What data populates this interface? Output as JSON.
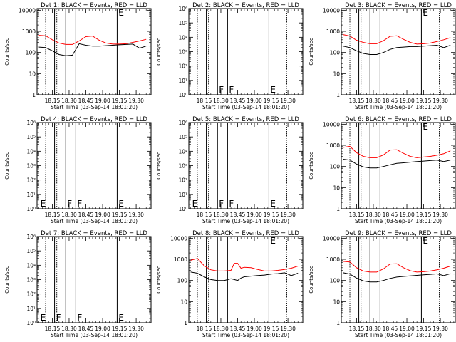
{
  "chart_data": [
    {
      "type": "line",
      "title": "Det 1: BLACK = Events, RED = LLD",
      "xlabel": "Start Time (03-Sep-14 18:01:20)",
      "ylabel": "Counts/sec",
      "xticks": [
        "18:15",
        "18:30",
        "18:45",
        "19:00",
        "19:15",
        "19:30"
      ],
      "yscale": "log",
      "ylim": [
        1,
        12000
      ],
      "yticks": [
        "1",
        "10",
        "100",
        "1000",
        "10000"
      ],
      "vlines_solid": [
        "18:17",
        "18:27",
        "18:36",
        "19:13"
      ],
      "vlines_dotted": [
        "18:09",
        "18:19",
        "19:29"
      ],
      "markers": [
        {
          "text": "E",
          "x": "19:13"
        }
      ],
      "series": [
        {
          "color": "#ff0000",
          "x": [
            "18:03",
            "18:09",
            "18:15",
            "18:21",
            "18:27",
            "18:33",
            "18:39",
            "18:45",
            "18:51",
            "18:57",
            "19:03",
            "19:09",
            "19:15",
            "19:21",
            "19:27",
            "19:33",
            "19:39"
          ],
          "values": [
            650,
            620,
            400,
            280,
            240,
            240,
            350,
            560,
            600,
            380,
            280,
            250,
            250,
            260,
            300,
            350,
            420
          ]
        },
        {
          "color": "#000000",
          "x": [
            "18:03",
            "18:09",
            "18:15",
            "18:21",
            "18:27",
            "18:33",
            "18:39",
            "18:45",
            "18:51",
            "18:57",
            "19:03",
            "19:09",
            "19:15",
            "19:21",
            "19:27",
            "19:33",
            "19:39"
          ],
          "values": [
            180,
            170,
            120,
            80,
            70,
            75,
            260,
            220,
            200,
            200,
            210,
            220,
            230,
            240,
            250,
            160,
            200
          ]
        }
      ]
    },
    {
      "type": "line",
      "title": "Det 2: BLACK = Events, RED = LLD",
      "xlabel": "Start Time (03-Sep-14 18:01:20)",
      "ylabel": "Counts/sec",
      "xticks": [
        "18:15",
        "18:30",
        "18:45",
        "19:00",
        "19:15",
        "19:30"
      ],
      "yscale": "log",
      "ylim": [
        1,
        1000000
      ],
      "yticks": [
        "10⁰",
        "10¹",
        "10²",
        "10³",
        "10⁴",
        "10⁵",
        "10⁶"
      ],
      "vlines_solid": [
        "18:17",
        "18:27",
        "18:36",
        "19:13"
      ],
      "vlines_dotted": [
        "18:09",
        "18:19",
        "19:29"
      ],
      "markers": [
        {
          "text": "F",
          "x": "18:27"
        },
        {
          "text": "F",
          "x": "18:36"
        },
        {
          "text": "E",
          "x": "19:13"
        }
      ],
      "series": []
    },
    {
      "type": "line",
      "title": "Det 3: BLACK = Events, RED = LLD",
      "xlabel": "Start Time (03-Sep-14 18:01:20)",
      "ylabel": "Counts/sec",
      "xticks": [
        "18:15",
        "18:30",
        "18:45",
        "19:00",
        "19:15",
        "19:30"
      ],
      "yscale": "log",
      "ylim": [
        1,
        12000
      ],
      "yticks": [
        "1",
        "10",
        "100",
        "1000",
        "10000"
      ],
      "vlines_solid": [
        "18:17",
        "18:27",
        "18:36",
        "19:13"
      ],
      "vlines_dotted": [
        "18:09",
        "18:19",
        "19:29"
      ],
      "markers": [
        {
          "text": "E",
          "x": "19:13"
        }
      ],
      "series": [
        {
          "color": "#ff0000",
          "x": [
            "18:03",
            "18:09",
            "18:15",
            "18:21",
            "18:27",
            "18:33",
            "18:39",
            "18:45",
            "18:51",
            "18:57",
            "19:03",
            "19:09",
            "19:15",
            "19:21",
            "19:27",
            "19:33",
            "19:39"
          ],
          "values": [
            700,
            600,
            380,
            300,
            260,
            260,
            360,
            580,
            620,
            420,
            300,
            250,
            260,
            280,
            330,
            400,
            500
          ]
        },
        {
          "color": "#000000",
          "x": [
            "18:03",
            "18:09",
            "18:15",
            "18:21",
            "18:27",
            "18:33",
            "18:39",
            "18:45",
            "18:51",
            "18:57",
            "19:03",
            "19:09",
            "19:15",
            "19:21",
            "19:27",
            "19:33",
            "19:39"
          ],
          "values": [
            200,
            170,
            120,
            90,
            80,
            80,
            100,
            140,
            170,
            180,
            190,
            190,
            200,
            210,
            220,
            170,
            220
          ]
        }
      ]
    },
    {
      "type": "line",
      "title": "Det 4: BLACK = Events, RED = LLD",
      "xlabel": "Start Time (03-Sep-14 18:01:20)",
      "ylabel": "Counts/sec",
      "xticks": [
        "18:15",
        "18:30",
        "18:45",
        "19:00",
        "19:15",
        "19:30"
      ],
      "yscale": "log",
      "ylim": [
        1,
        1000000
      ],
      "yticks": [
        "10⁰",
        "10¹",
        "10²",
        "10³",
        "10⁴",
        "10⁵",
        "10⁶"
      ],
      "vlines_solid": [
        "18:17",
        "18:27",
        "18:36",
        "19:13"
      ],
      "vlines_dotted": [
        "18:09",
        "18:19",
        "19:29"
      ],
      "markers": [
        {
          "text": "E",
          "x": "18:03"
        },
        {
          "text": "F",
          "x": "18:27"
        },
        {
          "text": "F",
          "x": "18:36"
        },
        {
          "text": "E",
          "x": "19:13"
        }
      ],
      "series": []
    },
    {
      "type": "line",
      "title": "Det 5: BLACK = Events, RED = LLD",
      "xlabel": "Start Time (03-Sep-14 18:01:20)",
      "ylabel": "Counts/sec",
      "xticks": [
        "18:15",
        "18:30",
        "18:45",
        "19:00",
        "19:15",
        "19:30"
      ],
      "yscale": "log",
      "ylim": [
        1,
        1000000
      ],
      "yticks": [
        "10⁰",
        "10¹",
        "10²",
        "10³",
        "10⁴",
        "10⁵",
        "10⁶"
      ],
      "vlines_solid": [
        "18:17",
        "18:27",
        "18:36",
        "19:13"
      ],
      "vlines_dotted": [
        "18:09",
        "18:19",
        "19:29"
      ],
      "markers": [
        {
          "text": "E",
          "x": "18:03"
        },
        {
          "text": "F",
          "x": "18:27"
        },
        {
          "text": "F",
          "x": "18:36"
        },
        {
          "text": "E",
          "x": "19:13"
        }
      ],
      "series": []
    },
    {
      "type": "line",
      "title": "Det 6: BLACK = Events, RED = LLD",
      "xlabel": "Start Time (03-Sep-14 18:01:20)",
      "ylabel": "Counts/sec",
      "xticks": [
        "18:15",
        "18:30",
        "18:45",
        "19:00",
        "19:15",
        "19:30"
      ],
      "yscale": "log",
      "ylim": [
        1,
        12000
      ],
      "yticks": [
        "1",
        "10",
        "100",
        "1000",
        "10000"
      ],
      "vlines_solid": [
        "18:17",
        "18:27",
        "18:36",
        "19:13"
      ],
      "vlines_dotted": [
        "18:09",
        "18:19",
        "19:29"
      ],
      "markers": [
        {
          "text": "E",
          "x": "19:13"
        }
      ],
      "series": [
        {
          "color": "#ff0000",
          "x": [
            "18:03",
            "18:09",
            "18:15",
            "18:21",
            "18:27",
            "18:33",
            "18:39",
            "18:45",
            "18:51",
            "18:57",
            "19:03",
            "19:09",
            "19:15",
            "19:21",
            "19:27",
            "19:33",
            "19:39"
          ],
          "values": [
            800,
            900,
            450,
            300,
            260,
            260,
            350,
            600,
            620,
            420,
            300,
            260,
            280,
            300,
            340,
            400,
            550
          ]
        },
        {
          "color": "#000000",
          "x": [
            "18:03",
            "18:09",
            "18:15",
            "18:21",
            "18:27",
            "18:33",
            "18:39",
            "18:45",
            "18:51",
            "18:57",
            "19:03",
            "19:09",
            "19:15",
            "19:21",
            "19:27",
            "19:33",
            "19:39"
          ],
          "values": [
            220,
            200,
            130,
            95,
            85,
            85,
            100,
            120,
            140,
            150,
            160,
            170,
            180,
            190,
            200,
            170,
            200
          ]
        }
      ]
    },
    {
      "type": "line",
      "title": "Det 7: BLACK = Events, RED = LLD",
      "xlabel": "Start Time (03-Sep-14 18:01:20)",
      "ylabel": "Counts/sec",
      "xticks": [
        "18:15",
        "18:30",
        "18:45",
        "19:00",
        "19:15",
        "19:30"
      ],
      "yscale": "log",
      "ylim": [
        1,
        1000000
      ],
      "yticks": [
        "10⁰",
        "10¹",
        "10²",
        "10³",
        "10⁴",
        "10⁵",
        "10⁶"
      ],
      "vlines_solid": [
        "18:17",
        "18:27",
        "18:36",
        "19:13"
      ],
      "vlines_dotted": [
        "18:09",
        "18:19",
        "19:29"
      ],
      "markers": [
        {
          "text": "E",
          "x": "18:03"
        },
        {
          "text": "F",
          "x": "18:17"
        },
        {
          "text": "F",
          "x": "18:36"
        },
        {
          "text": "E",
          "x": "19:13"
        }
      ],
      "series": []
    },
    {
      "type": "line",
      "title": "Det 8: BLACK = Events, RED = LLD",
      "xlabel": "Start Time (03-Sep-14 18:01:20)",
      "ylabel": "Counts/sec",
      "xticks": [
        "18:15",
        "18:30",
        "18:45",
        "19:00",
        "19:15",
        "19:30"
      ],
      "yscale": "log",
      "ylim": [
        1,
        12000
      ],
      "yticks": [
        "1",
        "10",
        "100",
        "1000",
        "10000"
      ],
      "vlines_solid": [
        "18:17",
        "18:27",
        "18:36",
        "19:13"
      ],
      "vlines_dotted": [
        "18:09",
        "18:19",
        "19:29"
      ],
      "markers": [
        {
          "text": "E",
          "x": "19:13"
        }
      ],
      "series": [
        {
          "color": "#ff0000",
          "x": [
            "18:03",
            "18:09",
            "18:15",
            "18:21",
            "18:27",
            "18:33",
            "18:39",
            "18:42",
            "18:45",
            "18:48",
            "18:51",
            "18:57",
            "19:03",
            "19:09",
            "19:15",
            "19:21",
            "19:27",
            "19:33",
            "19:39"
          ],
          "values": [
            900,
            1100,
            500,
            320,
            280,
            280,
            300,
            650,
            650,
            380,
            420,
            400,
            330,
            280,
            280,
            300,
            330,
            380,
            480
          ]
        },
        {
          "color": "#000000",
          "x": [
            "18:03",
            "18:09",
            "18:15",
            "18:21",
            "18:27",
            "18:33",
            "18:39",
            "18:42",
            "18:45",
            "18:48",
            "18:51",
            "18:57",
            "19:03",
            "19:09",
            "19:15",
            "19:21",
            "19:27",
            "19:33",
            "19:39"
          ],
          "values": [
            250,
            220,
            150,
            110,
            100,
            100,
            120,
            110,
            100,
            130,
            150,
            160,
            170,
            180,
            200,
            210,
            230,
            170,
            220
          ]
        }
      ]
    },
    {
      "type": "line",
      "title": "Det 9: BLACK = Events, RED = LLD",
      "xlabel": "Start Time (03-Sep-14 18:01:20)",
      "ylabel": "Counts/sec",
      "xticks": [
        "18:15",
        "18:30",
        "18:45",
        "19:00",
        "19:15",
        "19:30"
      ],
      "yscale": "log",
      "ylim": [
        1,
        12000
      ],
      "yticks": [
        "1",
        "10",
        "100",
        "1000",
        "10000"
      ],
      "vlines_solid": [
        "18:17",
        "18:27",
        "18:36",
        "19:13"
      ],
      "vlines_dotted": [
        "18:09",
        "18:19",
        "19:29"
      ],
      "markers": [
        {
          "text": "E",
          "x": "19:13"
        }
      ],
      "series": [
        {
          "color": "#ff0000",
          "x": [
            "18:03",
            "18:09",
            "18:15",
            "18:21",
            "18:27",
            "18:33",
            "18:39",
            "18:45",
            "18:51",
            "18:57",
            "19:03",
            "19:09",
            "19:15",
            "19:21",
            "19:27",
            "19:33",
            "19:39"
          ],
          "values": [
            800,
            750,
            400,
            280,
            250,
            250,
            350,
            600,
            620,
            400,
            290,
            250,
            260,
            280,
            320,
            380,
            480
          ]
        },
        {
          "color": "#000000",
          "x": [
            "18:03",
            "18:09",
            "18:15",
            "18:21",
            "18:27",
            "18:33",
            "18:39",
            "18:45",
            "18:51",
            "18:57",
            "19:03",
            "19:09",
            "19:15",
            "19:21",
            "19:27",
            "19:33",
            "19:39"
          ],
          "values": [
            230,
            200,
            130,
            95,
            85,
            85,
            100,
            125,
            145,
            155,
            165,
            175,
            185,
            195,
            205,
            170,
            210
          ]
        }
      ]
    }
  ]
}
